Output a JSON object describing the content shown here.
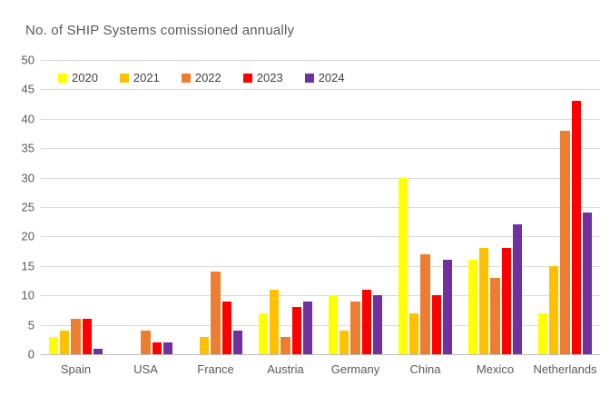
{
  "chart_data": {
    "type": "bar",
    "title": "No. of SHIP Systems comissioned annually",
    "categories": [
      "Spain",
      "USA",
      "France",
      "Austria",
      "Germany",
      "China",
      "Mexico",
      "Netherlands"
    ],
    "series": [
      {
        "name": "2020",
        "color": "#FFFF00",
        "values": [
          3,
          0,
          0,
          7,
          10,
          30,
          16,
          7
        ]
      },
      {
        "name": "2021",
        "color": "#FFC000",
        "values": [
          4,
          0,
          3,
          11,
          4,
          7,
          18,
          15
        ]
      },
      {
        "name": "2022",
        "color": "#ED7D31",
        "values": [
          6,
          4,
          14,
          3,
          9,
          17,
          13,
          38
        ]
      },
      {
        "name": "2023",
        "color": "#FF0000",
        "values": [
          6,
          2,
          9,
          8,
          11,
          10,
          18,
          43
        ]
      },
      {
        "name": "2024",
        "color": "#7030A0",
        "values": [
          1,
          2,
          4,
          9,
          10,
          16,
          22,
          24
        ]
      }
    ],
    "xlabel": "",
    "ylabel": "",
    "ylim": [
      0,
      50
    ],
    "ytick_step": 5,
    "yticks": [
      "0",
      "5",
      "10",
      "15",
      "20",
      "25",
      "30",
      "35",
      "40",
      "45",
      "50"
    ],
    "grid": true,
    "legend_position": "top"
  },
  "colors": {
    "background": "#FFFFFF",
    "text": "#595959",
    "gridline": "#D9D9D9",
    "axis_line": "#BFBFBF"
  }
}
